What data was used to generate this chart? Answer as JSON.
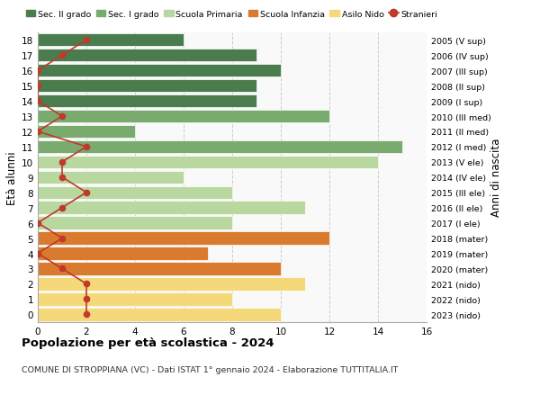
{
  "ages": [
    18,
    17,
    16,
    15,
    14,
    13,
    12,
    11,
    10,
    9,
    8,
    7,
    6,
    5,
    4,
    3,
    2,
    1,
    0
  ],
  "years": [
    "2005 (V sup)",
    "2006 (IV sup)",
    "2007 (III sup)",
    "2008 (II sup)",
    "2009 (I sup)",
    "2010 (III med)",
    "2011 (II med)",
    "2012 (I med)",
    "2013 (V ele)",
    "2014 (IV ele)",
    "2015 (III ele)",
    "2016 (II ele)",
    "2017 (I ele)",
    "2018 (mater)",
    "2019 (mater)",
    "2020 (mater)",
    "2021 (nido)",
    "2022 (nido)",
    "2023 (nido)"
  ],
  "bar_values": [
    6,
    9,
    10,
    9,
    9,
    12,
    4,
    15,
    14,
    6,
    8,
    11,
    8,
    12,
    7,
    10,
    11,
    8,
    10
  ],
  "bar_colors": [
    "#4a7c4e",
    "#4a7c4e",
    "#4a7c4e",
    "#4a7c4e",
    "#4a7c4e",
    "#7aab6e",
    "#7aab6e",
    "#7aab6e",
    "#b8d8a0",
    "#b8d8a0",
    "#b8d8a0",
    "#b8d8a0",
    "#b8d8a0",
    "#d97b2e",
    "#d97b2e",
    "#d97b2e",
    "#f5d87a",
    "#f5d87a",
    "#f5d87a"
  ],
  "stranieri_values": [
    2,
    1,
    0,
    0,
    0,
    1,
    0,
    2,
    1,
    1,
    2,
    1,
    0,
    1,
    0,
    1,
    2,
    2,
    2
  ],
  "legend_labels": [
    "Sec. II grado",
    "Sec. I grado",
    "Scuola Primaria",
    "Scuola Infanzia",
    "Asilo Nido",
    "Stranieri"
  ],
  "legend_colors": [
    "#4a7c4e",
    "#7aab6e",
    "#b8d8a0",
    "#d97b2e",
    "#f5d87a",
    "#c0392b"
  ],
  "ylabel_left": "Età alunni",
  "ylabel_right": "Anni di nascita",
  "xlim": [
    0,
    16
  ],
  "title": "Popolazione per età scolastica - 2024",
  "subtitle": "COMUNE DI STROPPIANA (VC) - Dati ISTAT 1° gennaio 2024 - Elaborazione TUTTITALIA.IT",
  "stranieri_color": "#c0392b",
  "grid_color": "#cccccc",
  "bg_color": "#f9f9f9"
}
